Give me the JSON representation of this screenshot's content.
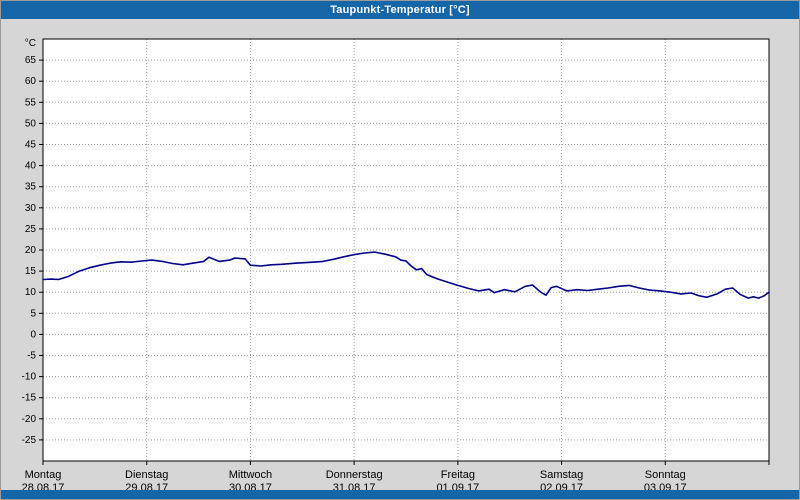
{
  "window": {
    "title": "Taupunkt-Temperatur [°C]",
    "titlebar_color": "#1565a9",
    "background_color": "#d6d6d6"
  },
  "chart_data": {
    "type": "line",
    "title": "Taupunkt-Temperatur [°C]",
    "ylabel": "°C",
    "line_color": "#00008B",
    "grid": true,
    "legend": "none",
    "ylim": [
      -30,
      70
    ],
    "xlim": [
      0,
      7
    ],
    "y_ticks": [
      65,
      60,
      55,
      50,
      45,
      40,
      35,
      30,
      25,
      20,
      15,
      10,
      5,
      0,
      -5,
      -10,
      -15,
      -20,
      -25
    ],
    "x_ticks": [
      {
        "day": "Montag",
        "date": "28.08.17"
      },
      {
        "day": "Dienstag",
        "date": "29.08.17"
      },
      {
        "day": "Mittwoch",
        "date": "30.08.17"
      },
      {
        "day": "Donnerstag",
        "date": "31.08.17"
      },
      {
        "day": "Freitag",
        "date": "01.09.17"
      },
      {
        "day": "Samstag",
        "date": "02.09.17"
      },
      {
        "day": "Sonntag",
        "date": "03.09.17"
      }
    ],
    "series": [
      {
        "name": "Taupunkt-Temperatur",
        "points": [
          [
            0.0,
            13.0
          ],
          [
            0.08,
            13.1
          ],
          [
            0.15,
            13.0
          ],
          [
            0.25,
            13.8
          ],
          [
            0.35,
            15.0
          ],
          [
            0.45,
            15.8
          ],
          [
            0.55,
            16.4
          ],
          [
            0.65,
            16.9
          ],
          [
            0.75,
            17.2
          ],
          [
            0.85,
            17.1
          ],
          [
            0.95,
            17.4
          ],
          [
            1.05,
            17.6
          ],
          [
            1.15,
            17.3
          ],
          [
            1.25,
            16.8
          ],
          [
            1.35,
            16.5
          ],
          [
            1.45,
            16.9
          ],
          [
            1.55,
            17.3
          ],
          [
            1.6,
            18.3
          ],
          [
            1.7,
            17.3
          ],
          [
            1.8,
            17.6
          ],
          [
            1.85,
            18.1
          ],
          [
            1.95,
            17.9
          ],
          [
            2.0,
            16.4
          ],
          [
            2.1,
            16.2
          ],
          [
            2.2,
            16.5
          ],
          [
            2.3,
            16.6
          ],
          [
            2.45,
            16.9
          ],
          [
            2.6,
            17.1
          ],
          [
            2.7,
            17.3
          ],
          [
            2.8,
            17.8
          ],
          [
            2.9,
            18.4
          ],
          [
            3.0,
            18.9
          ],
          [
            3.1,
            19.3
          ],
          [
            3.2,
            19.5
          ],
          [
            3.3,
            19.0
          ],
          [
            3.4,
            18.4
          ],
          [
            3.45,
            17.6
          ],
          [
            3.5,
            17.4
          ],
          [
            3.55,
            16.2
          ],
          [
            3.6,
            15.3
          ],
          [
            3.65,
            15.6
          ],
          [
            3.7,
            14.2
          ],
          [
            3.8,
            13.2
          ],
          [
            3.9,
            12.4
          ],
          [
            4.0,
            11.6
          ],
          [
            4.1,
            10.9
          ],
          [
            4.2,
            10.3
          ],
          [
            4.3,
            10.7
          ],
          [
            4.35,
            9.9
          ],
          [
            4.45,
            10.6
          ],
          [
            4.55,
            10.1
          ],
          [
            4.65,
            11.4
          ],
          [
            4.72,
            11.7
          ],
          [
            4.8,
            10.0
          ],
          [
            4.85,
            9.3
          ],
          [
            4.9,
            11.1
          ],
          [
            4.95,
            11.4
          ],
          [
            5.05,
            10.3
          ],
          [
            5.15,
            10.6
          ],
          [
            5.25,
            10.4
          ],
          [
            5.35,
            10.7
          ],
          [
            5.45,
            11.0
          ],
          [
            5.55,
            11.4
          ],
          [
            5.65,
            11.6
          ],
          [
            5.75,
            11.0
          ],
          [
            5.85,
            10.5
          ],
          [
            5.95,
            10.3
          ],
          [
            6.05,
            10.0
          ],
          [
            6.15,
            9.6
          ],
          [
            6.25,
            9.8
          ],
          [
            6.32,
            9.2
          ],
          [
            6.4,
            8.8
          ],
          [
            6.5,
            9.6
          ],
          [
            6.58,
            10.7
          ],
          [
            6.65,
            11.0
          ],
          [
            6.72,
            9.5
          ],
          [
            6.8,
            8.6
          ],
          [
            6.85,
            8.9
          ],
          [
            6.9,
            8.6
          ],
          [
            6.95,
            9.1
          ],
          [
            7.0,
            10.0
          ]
        ]
      }
    ]
  }
}
